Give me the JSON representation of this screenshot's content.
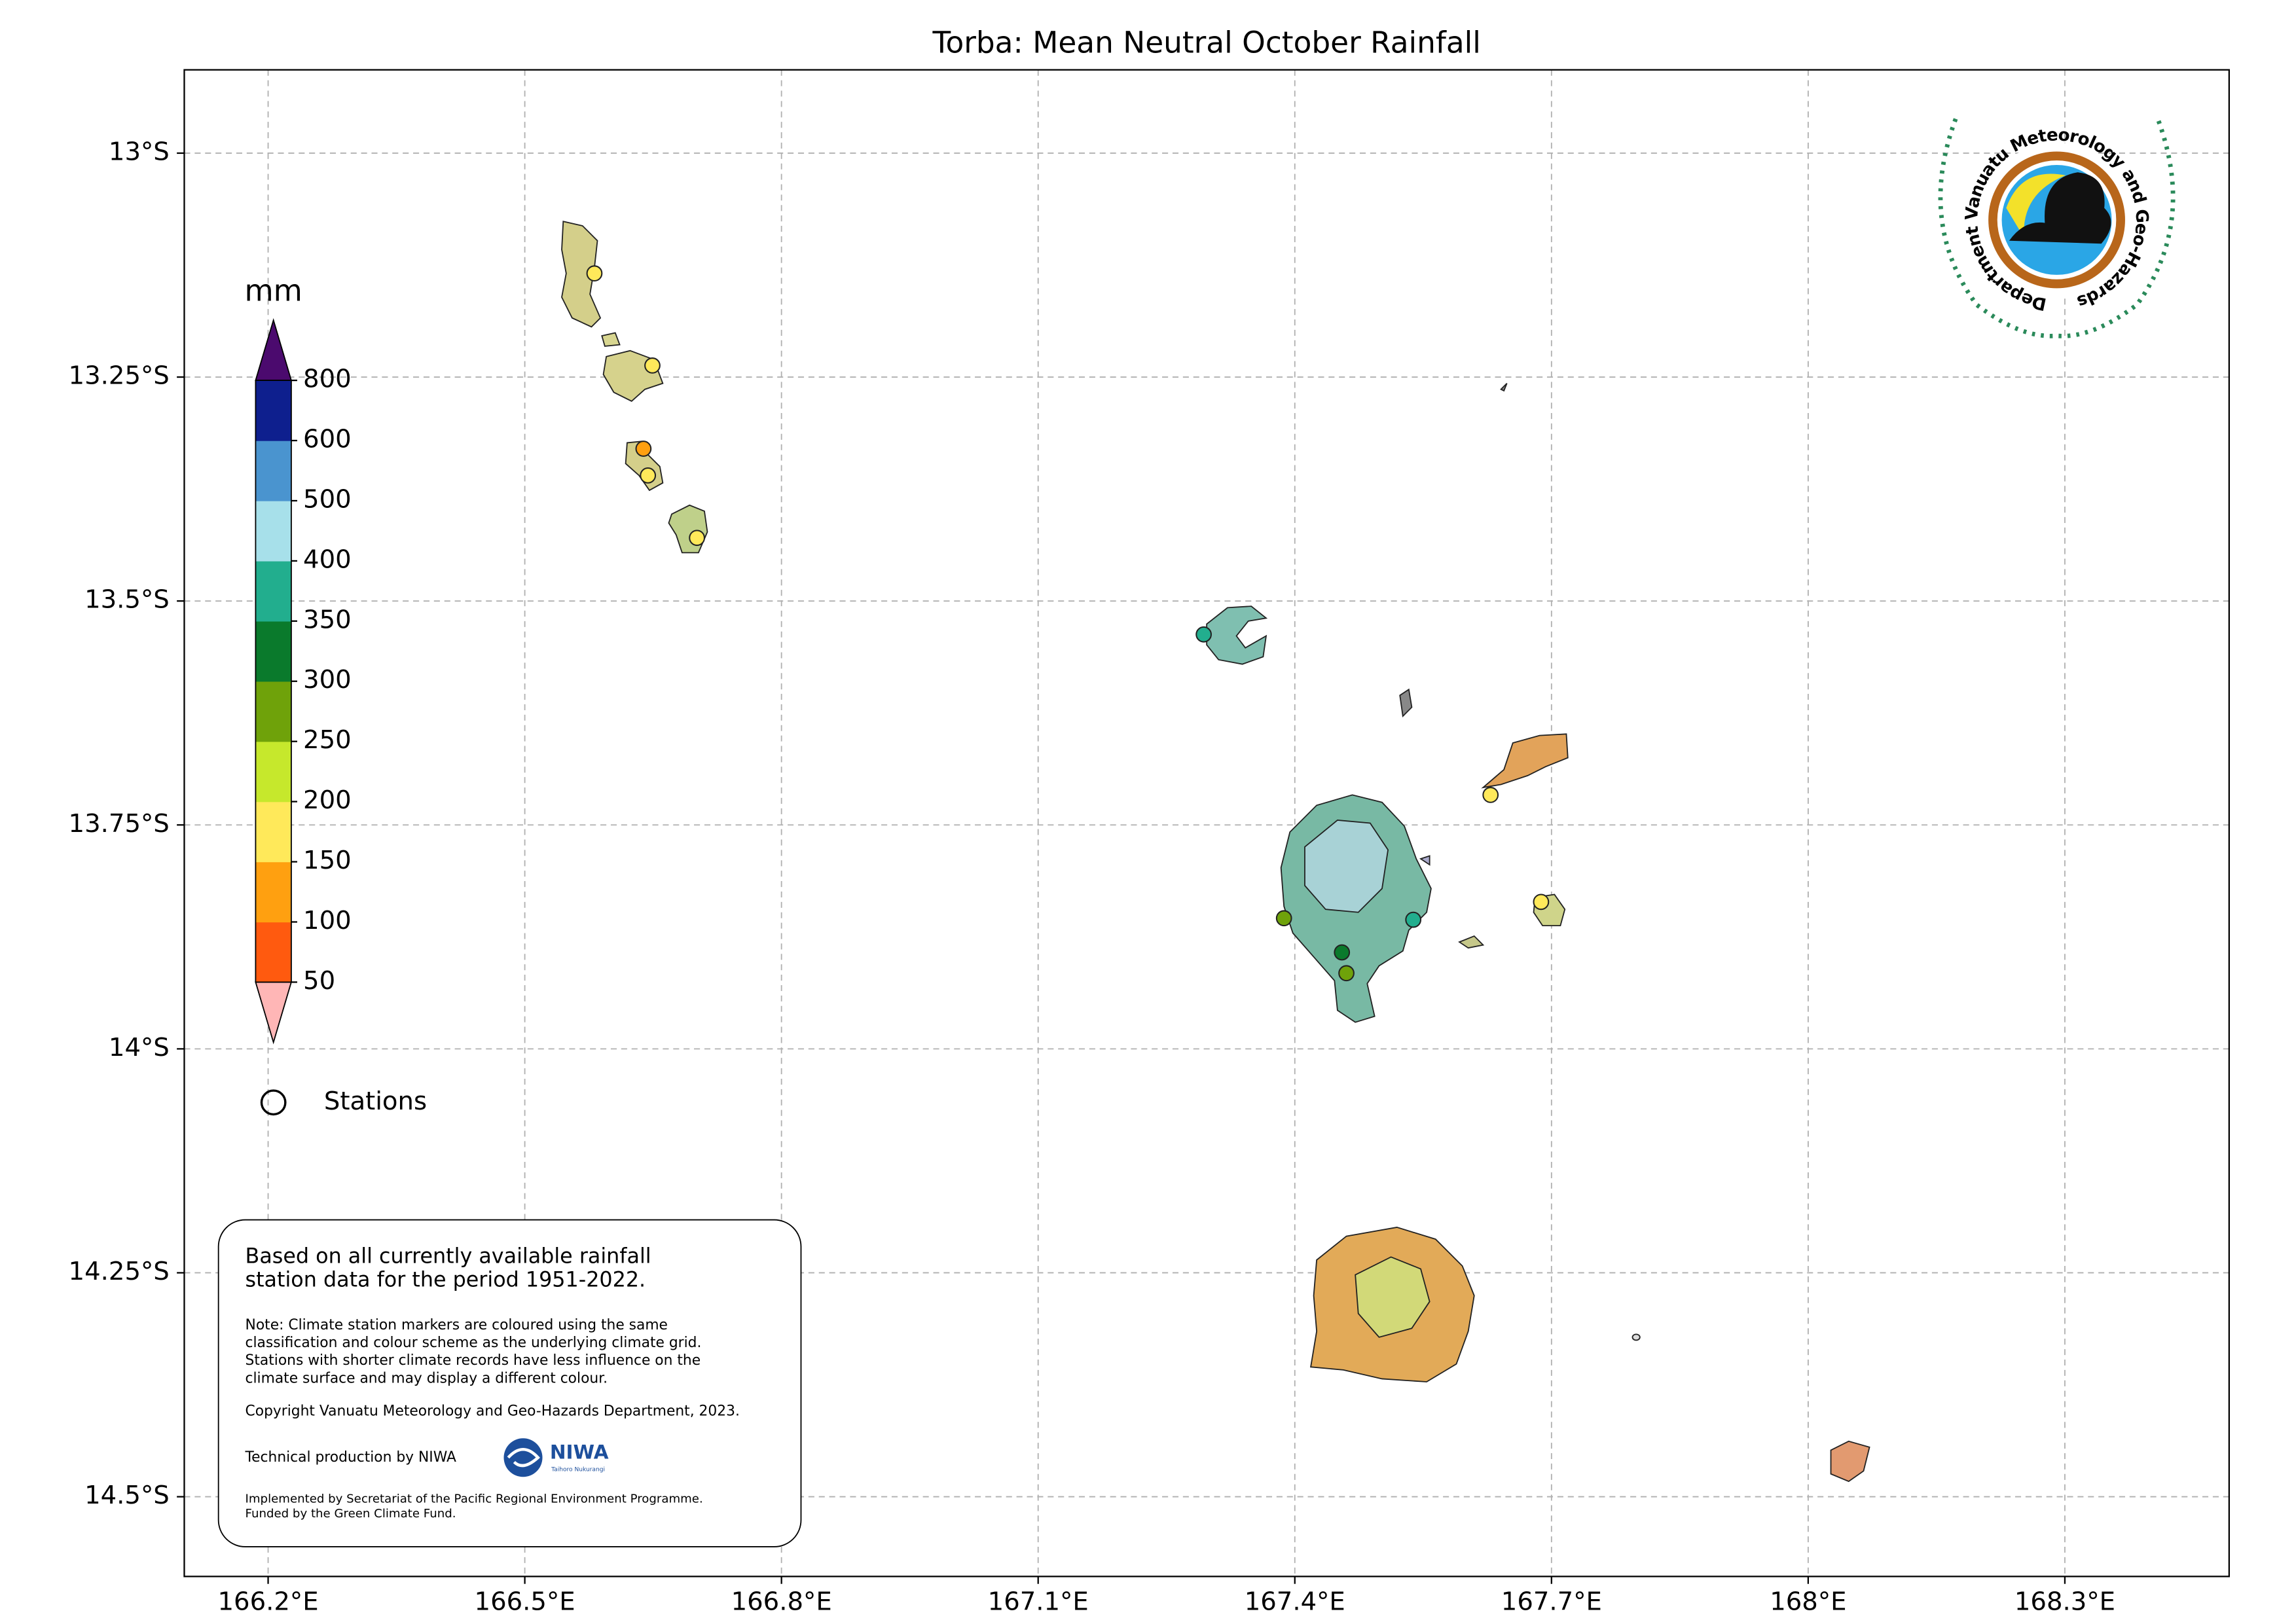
{
  "chart_data": {
    "type": "map",
    "title": "Torba: Mean Neutral October Rainfall",
    "xlim": [
      166.102,
      168.492
    ],
    "ylim": [
      -14.589,
      -12.907
    ],
    "xticks": [
      {
        "value": 166.2,
        "label": "166.2°E"
      },
      {
        "value": 166.5,
        "label": "166.5°E"
      },
      {
        "value": 166.8,
        "label": "166.8°E"
      },
      {
        "value": 167.1,
        "label": "167.1°E"
      },
      {
        "value": 167.4,
        "label": "167.4°E"
      },
      {
        "value": 167.7,
        "label": "167.7°E"
      },
      {
        "value": 168.0,
        "label": "168°E"
      },
      {
        "value": 168.3,
        "label": "168.3°E"
      }
    ],
    "yticks": [
      {
        "value": -13.0,
        "label": "13°S"
      },
      {
        "value": -13.25,
        "label": "13.25°S"
      },
      {
        "value": -13.5,
        "label": "13.5°S"
      },
      {
        "value": -13.75,
        "label": "13.75°S"
      },
      {
        "value": -14.0,
        "label": "14°S"
      },
      {
        "value": -14.25,
        "label": "14.25°S"
      },
      {
        "value": -14.5,
        "label": "14.5°S"
      }
    ],
    "grid": true,
    "colorbar": {
      "label": "mm",
      "ticks": [
        50,
        100,
        150,
        200,
        250,
        300,
        350,
        400,
        500,
        600,
        800
      ],
      "colors": [
        "#ff5a0f",
        "#ffa010",
        "#ffe95a",
        "#c6e82c",
        "#6fa20a",
        "#0a7a2c",
        "#22ae8e",
        "#a7e0ea",
        "#4a94cf",
        "#0e1f8e"
      ],
      "under_color": "#ffb6b6",
      "over_color": "#4b0a6e"
    },
    "stations_label": "Stations",
    "info_box": {
      "summary": [
        "Based on all currently available rainfall",
        "station data for the period 1951-2022."
      ],
      "note": [
        "Note: Climate station markers are coloured using the same",
        "classification and colour scheme as the underlying climate grid.",
        "Stations with shorter climate records have less influence on the",
        "climate surface and may display a different colour."
      ],
      "copyright": "Copyright Vanuatu Meteorology and Geo-Hazards Department, 2023.",
      "technical": "Technical production by NIWA",
      "niwa": "NIWA",
      "niwa_tagline": "Taihoro Nukurangi",
      "implemented": [
        "Implemented by Secretariat of the Pacific Regional Environment Programme.",
        "Funded by the Green Climate Fund."
      ]
    },
    "logo_text": "Department Vanuatu Meteorology and Geo-Hazards"
  }
}
